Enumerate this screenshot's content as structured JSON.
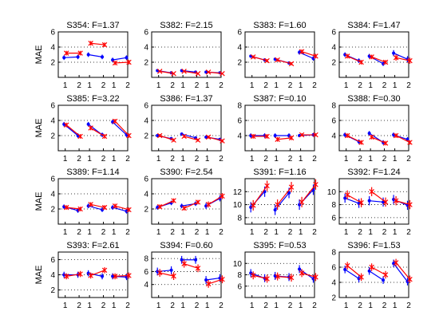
{
  "figure": {
    "ylabel": "MAE",
    "blue": "#0000ff",
    "red": "#ff0000",
    "grid_color": "#000000"
  },
  "chart_data": [
    {
      "type": "line",
      "title": "S354: F=1.37",
      "ylabel": "MAE",
      "ylim": [
        0,
        6
      ],
      "yticks": [
        2,
        4,
        6
      ],
      "xtick_labels": [
        "1",
        "2",
        "1",
        "2",
        "1",
        "2"
      ],
      "grid": "dotted-horizontal",
      "series": [
        {
          "name": "blue",
          "values": [
            [
              2.6,
              2.7
            ],
            [
              3.0,
              2.7
            ],
            [
              2.3,
              2.6
            ]
          ],
          "err": [
            0.3,
            0.3,
            0.3
          ]
        },
        {
          "name": "red",
          "values": [
            [
              3.2,
              3.2
            ],
            [
              4.5,
              4.3
            ],
            [
              1.9,
              2.0
            ]
          ],
          "err": [
            0.3,
            0.3,
            0.3
          ]
        }
      ]
    },
    {
      "type": "line",
      "title": "S382: F=2.15",
      "ylim": [
        0,
        6
      ],
      "yticks": [
        2,
        4,
        6
      ],
      "xtick_labels": [
        "1",
        "2",
        "1",
        "2",
        "1",
        "2"
      ],
      "grid": "dotted-horizontal",
      "series": [
        {
          "name": "blue",
          "values": [
            [
              0.9,
              0.6
            ],
            [
              0.9,
              0.7
            ],
            [
              0.7,
              0.6
            ]
          ],
          "err": [
            0.1,
            0.1,
            0.1
          ]
        },
        {
          "name": "red",
          "values": [
            [
              0.8,
              0.5
            ],
            [
              0.8,
              0.5
            ],
            [
              0.7,
              0.5
            ]
          ],
          "err": [
            0.1,
            0.1,
            0.1
          ]
        }
      ]
    },
    {
      "type": "line",
      "title": "S383: F=1.60",
      "ylim": [
        0,
        6
      ],
      "yticks": [
        2,
        4,
        6
      ],
      "xtick_labels": [
        "1",
        "2",
        "1",
        "2",
        "1",
        "2"
      ],
      "grid": "dotted-horizontal",
      "series": [
        {
          "name": "blue",
          "values": [
            [
              2.8,
              2.3
            ],
            [
              2.4,
              1.9
            ],
            [
              3.3,
              2.5
            ]
          ],
          "err": [
            0.2,
            0.2,
            0.3
          ]
        },
        {
          "name": "red",
          "values": [
            [
              2.7,
              2.2
            ],
            [
              2.3,
              1.8
            ],
            [
              3.4,
              2.8
            ]
          ],
          "err": [
            0.2,
            0.2,
            0.3
          ]
        }
      ]
    },
    {
      "type": "line",
      "title": "S384: F=1.47",
      "ylim": [
        0,
        6
      ],
      "yticks": [
        2,
        4,
        6
      ],
      "xtick_labels": [
        "1",
        "2",
        "1",
        "2",
        "1",
        "2"
      ],
      "grid": "dotted-horizontal",
      "series": [
        {
          "name": "blue",
          "values": [
            [
              3.0,
              2.2
            ],
            [
              2.8,
              1.8
            ],
            [
              3.2,
              2.4
            ]
          ],
          "err": [
            0.3,
            0.3,
            0.4
          ]
        },
        {
          "name": "red",
          "values": [
            [
              2.8,
              2.0
            ],
            [
              2.7,
              2.0
            ],
            [
              2.6,
              2.2
            ]
          ],
          "err": [
            0.3,
            0.3,
            0.4
          ]
        }
      ]
    },
    {
      "type": "line",
      "title": "S385: F=3.22",
      "ylabel": "MAE",
      "ylim": [
        0,
        6
      ],
      "yticks": [
        2,
        4,
        6
      ],
      "xtick_labels": [
        "1",
        "2",
        "1",
        "2",
        "1",
        "2"
      ],
      "grid": "dotted-horizontal",
      "series": [
        {
          "name": "blue",
          "values": [
            [
              3.5,
              2.0
            ],
            [
              3.5,
              2.1
            ],
            [
              3.8,
              2.1
            ]
          ],
          "err": [
            0.3,
            0.3,
            0.3
          ]
        },
        {
          "name": "red",
          "values": [
            [
              3.4,
              1.9
            ],
            [
              3.0,
              1.9
            ],
            [
              3.9,
              2.0
            ]
          ],
          "err": [
            0.3,
            0.3,
            0.3
          ]
        }
      ]
    },
    {
      "type": "line",
      "title": "S386: F=1.37",
      "ylim": [
        0,
        6
      ],
      "yticks": [
        2,
        4,
        6
      ],
      "xtick_labels": [
        "1",
        "2",
        "1",
        "2",
        "1",
        "2"
      ],
      "grid": "dotted-horizontal",
      "series": [
        {
          "name": "blue",
          "values": [
            [
              2.0,
              1.6
            ],
            [
              2.2,
              1.7
            ],
            [
              1.8,
              1.5
            ]
          ],
          "err": [
            0.2,
            0.2,
            0.2
          ]
        },
        {
          "name": "red",
          "values": [
            [
              2.0,
              1.4
            ],
            [
              1.9,
              1.4
            ],
            [
              1.8,
              1.3
            ]
          ],
          "err": [
            0.2,
            0.2,
            0.2
          ]
        }
      ]
    },
    {
      "type": "line",
      "title": "S387: F=0.10",
      "ylim": [
        2,
        8
      ],
      "yticks": [
        4,
        6,
        8
      ],
      "xtick_labels": [
        "1",
        "2",
        "1",
        "2",
        "1",
        "2"
      ],
      "grid": "dotted-horizontal",
      "series": [
        {
          "name": "blue",
          "values": [
            [
              4.0,
              4.0
            ],
            [
              4.0,
              4.0
            ],
            [
              4.0,
              4.1
            ]
          ],
          "err": [
            0.3,
            0.3,
            0.2
          ]
        },
        {
          "name": "red",
          "values": [
            [
              3.9,
              3.9
            ],
            [
              3.5,
              3.7
            ],
            [
              4.1,
              4.1
            ]
          ],
          "err": [
            0.3,
            0.3,
            0.2
          ]
        }
      ]
    },
    {
      "type": "line",
      "title": "S388: F=0.30",
      "ylim": [
        2,
        8
      ],
      "yticks": [
        4,
        6,
        8
      ],
      "xtick_labels": [
        "1",
        "2",
        "1",
        "2",
        "1",
        "2"
      ],
      "grid": "dotted-horizontal",
      "series": [
        {
          "name": "blue",
          "values": [
            [
              4.1,
              3.2
            ],
            [
              4.3,
              3.1
            ],
            [
              4.1,
              3.5
            ]
          ],
          "err": [
            0.3,
            0.3,
            0.3
          ]
        },
        {
          "name": "red",
          "values": [
            [
              4.0,
              3.1
            ],
            [
              3.8,
              3.0
            ],
            [
              4.0,
              3.1
            ]
          ],
          "err": [
            0.3,
            0.3,
            0.3
          ]
        }
      ]
    },
    {
      "type": "line",
      "title": "S389: F=1.14",
      "ylabel": "MAE",
      "ylim": [
        0,
        6
      ],
      "yticks": [
        2,
        4,
        6
      ],
      "xtick_labels": [
        "1",
        "2",
        "1",
        "2",
        "1",
        "2"
      ],
      "grid": "dotted-horizontal",
      "series": [
        {
          "name": "blue",
          "values": [
            [
              2.3,
              1.8
            ],
            [
              2.4,
              1.9
            ],
            [
              2.2,
              1.7
            ]
          ],
          "err": [
            0.3,
            0.3,
            0.3
          ]
        },
        {
          "name": "red",
          "values": [
            [
              2.2,
              2.0
            ],
            [
              2.6,
              2.2
            ],
            [
              2.4,
              1.9
            ]
          ],
          "err": [
            0.3,
            0.3,
            0.3
          ]
        }
      ]
    },
    {
      "type": "line",
      "title": "S390: F=2.54",
      "ylim": [
        0,
        6
      ],
      "yticks": [
        2,
        4,
        6
      ],
      "xtick_labels": [
        "1",
        "2",
        "1",
        "2",
        "1",
        "2"
      ],
      "grid": "dotted-horizontal",
      "series": [
        {
          "name": "blue",
          "values": [
            [
              2.2,
              2.8
            ],
            [
              2.4,
              2.7
            ],
            [
              2.4,
              3.4
            ]
          ],
          "err": [
            0.3,
            0.3,
            0.4
          ]
        },
        {
          "name": "red",
          "values": [
            [
              2.3,
              3.1
            ],
            [
              2.1,
              2.9
            ],
            [
              2.6,
              3.7
            ]
          ],
          "err": [
            0.3,
            0.3,
            0.4
          ]
        }
      ]
    },
    {
      "type": "line",
      "title": "S391: F=1.16",
      "ylim": [
        7,
        14
      ],
      "yticks": [
        8,
        10,
        12
      ],
      "xtick_labels": [
        "1",
        "2",
        "1",
        "2",
        "1",
        "2"
      ],
      "grid": "dotted-horizontal",
      "series": [
        {
          "name": "blue",
          "values": [
            [
              9.6,
              12.0
            ],
            [
              9.2,
              11.8
            ],
            [
              10.0,
              12.3
            ]
          ],
          "err": [
            0.8,
            0.8,
            0.8
          ]
        },
        {
          "name": "red",
          "values": [
            [
              9.9,
              12.9
            ],
            [
              10.0,
              12.7
            ],
            [
              10.4,
              13.1
            ]
          ],
          "err": [
            0.8,
            0.8,
            0.8
          ]
        }
      ]
    },
    {
      "type": "line",
      "title": "S392: F=1.24",
      "ylim": [
        5,
        12
      ],
      "yticks": [
        6,
        8,
        10
      ],
      "xtick_labels": [
        "1",
        "2",
        "1",
        "2",
        "1",
        "2"
      ],
      "grid": "dotted-horizontal",
      "series": [
        {
          "name": "blue",
          "values": [
            [
              9.0,
              8.2
            ],
            [
              8.6,
              8.4
            ],
            [
              8.8,
              7.9
            ]
          ],
          "err": [
            0.7,
            0.7,
            0.7
          ]
        },
        {
          "name": "red",
          "values": [
            [
              9.5,
              8.3
            ],
            [
              10.0,
              8.4
            ],
            [
              8.6,
              8.0
            ]
          ],
          "err": [
            0.7,
            0.7,
            0.7
          ]
        }
      ]
    },
    {
      "type": "line",
      "title": "S393: F=2.61",
      "ylabel": "MAE",
      "ylim": [
        1,
        7
      ],
      "yticks": [
        2,
        4,
        6
      ],
      "xtick_labels": [
        "1",
        "2",
        "1",
        "2",
        "1",
        "2"
      ],
      "grid": "dotted-horizontal",
      "series": [
        {
          "name": "blue",
          "values": [
            [
              4.0,
              4.0
            ],
            [
              4.2,
              3.8
            ],
            [
              3.8,
              3.7
            ]
          ],
          "err": [
            0.4,
            0.4,
            0.4
          ]
        },
        {
          "name": "red",
          "values": [
            [
              3.8,
              4.1
            ],
            [
              3.9,
              4.6
            ],
            [
              3.8,
              3.9
            ]
          ],
          "err": [
            0.4,
            0.4,
            0.4
          ]
        }
      ]
    },
    {
      "type": "line",
      "title": "S394: F=0.60",
      "ylim": [
        2,
        9
      ],
      "yticks": [
        4,
        6,
        8
      ],
      "xtick_labels": [
        "1",
        "2",
        "1",
        "2",
        "1",
        "2"
      ],
      "grid": "dotted-horizontal",
      "series": [
        {
          "name": "blue",
          "values": [
            [
              6.0,
              6.2
            ],
            [
              7.8,
              7.8
            ],
            [
              4.7,
              5.0
            ]
          ],
          "err": [
            0.6,
            0.6,
            0.6
          ]
        },
        {
          "name": "red",
          "values": [
            [
              5.8,
              5.3
            ],
            [
              7.2,
              6.5
            ],
            [
              4.1,
              4.8
            ]
          ],
          "err": [
            0.6,
            0.6,
            0.6
          ]
        }
      ]
    },
    {
      "type": "line",
      "title": "S395: F=0.53",
      "ylim": [
        4,
        12
      ],
      "yticks": [
        6,
        8,
        10
      ],
      "xtick_labels": [
        "1",
        "2",
        "1",
        "2",
        "1",
        "2"
      ],
      "grid": "dotted-horizontal",
      "series": [
        {
          "name": "blue",
          "values": [
            [
              8.3,
              7.4
            ],
            [
              7.8,
              7.6
            ],
            [
              9.0,
              7.3
            ]
          ],
          "err": [
            0.7,
            0.7,
            0.7
          ]
        },
        {
          "name": "red",
          "values": [
            [
              7.9,
              7.3
            ],
            [
              7.7,
              7.5
            ],
            [
              8.3,
              7.6
            ]
          ],
          "err": [
            0.7,
            0.7,
            0.7
          ]
        }
      ]
    },
    {
      "type": "line",
      "title": "S396: F=1.53",
      "ylim": [
        2,
        8
      ],
      "yticks": [
        2,
        4,
        6,
        8
      ],
      "xtick_labels": [
        "1",
        "2",
        "1",
        "2",
        "1",
        "2"
      ],
      "grid": "dotted-horizontal",
      "series": [
        {
          "name": "blue",
          "values": [
            [
              5.7,
              4.5
            ],
            [
              5.5,
              4.3
            ],
            [
              6.5,
              4.1
            ]
          ],
          "err": [
            0.5,
            0.5,
            0.5
          ]
        },
        {
          "name": "red",
          "values": [
            [
              6.2,
              4.7
            ],
            [
              6.0,
              5.0
            ],
            [
              6.6,
              4.4
            ]
          ],
          "err": [
            0.5,
            0.5,
            0.5
          ]
        }
      ]
    }
  ]
}
